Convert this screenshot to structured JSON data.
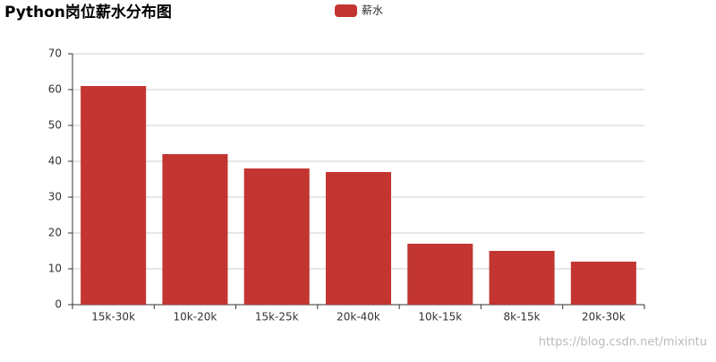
{
  "chart_data": {
    "type": "bar",
    "title": "Python岗位薪水分布图",
    "categories": [
      "15k-30k",
      "10k-20k",
      "15k-25k",
      "20k-40k",
      "10k-15k",
      "8k-15k",
      "20k-30k"
    ],
    "series": [
      {
        "name": "薪水",
        "color": "#c23531",
        "values": [
          61,
          42,
          38,
          37,
          17,
          15,
          12
        ]
      }
    ],
    "ylim": [
      0,
      70
    ],
    "yticks": [
      0,
      10,
      20,
      30,
      40,
      50,
      60,
      70
    ],
    "grid": true,
    "legend": "top"
  },
  "watermark": "https://blog.csdn.net/mixintu"
}
